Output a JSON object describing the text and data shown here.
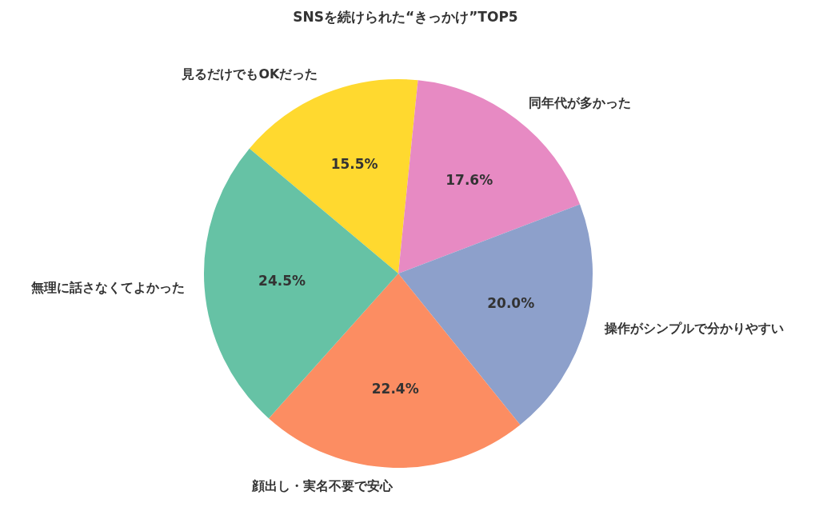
{
  "chart_data": {
    "type": "pie",
    "title": "SNSを続けられた“きっかけ”TOP5",
    "categories": [
      "見るだけでもOKだった",
      "同年代が多かった",
      "操作がシンプルで分かりやすい",
      "顔出し・実名不要で安心",
      "無理に話さなくてよかった"
    ],
    "values": [
      15.5,
      17.6,
      20.0,
      22.4,
      24.5
    ],
    "colors": [
      "#ffd92f",
      "#e78ac3",
      "#8da0cb",
      "#fc8d62",
      "#66c2a5"
    ],
    "value_labels": [
      "15.5%",
      "17.6%",
      "20.0%",
      "22.4%",
      "24.5%"
    ],
    "legend": false
  }
}
